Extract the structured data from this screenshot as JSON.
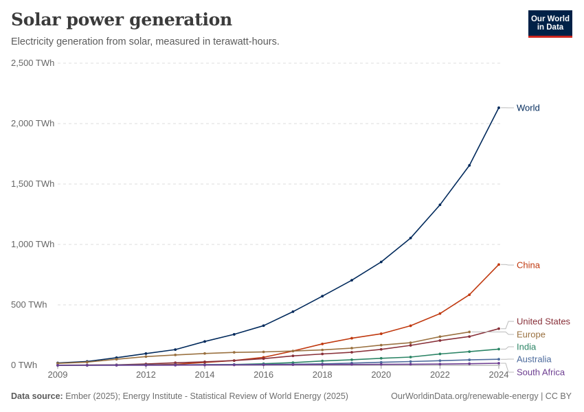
{
  "header": {
    "title": "Solar power generation",
    "subtitle": "Electricity generation from solar, measured in terawatt-hours."
  },
  "logo": {
    "line1": "Our World",
    "line2": "in Data"
  },
  "footer": {
    "source_label": "Data source:",
    "source_text": "Ember (2025); Energy Institute - Statistical Review of World Energy (2025)",
    "url_license": "OurWorldinData.org/renewable-energy | CC BY"
  },
  "chart_data": {
    "type": "line",
    "title": "Solar power generation",
    "subtitle": "Electricity generation from solar, measured in terawatt-hours.",
    "xlim": [
      2009,
      2024
    ],
    "ylim": [
      0,
      2500
    ],
    "y_unit": "TWh",
    "x_ticks": [
      "2009",
      "2012",
      "2014",
      "2016",
      "2018",
      "2020",
      "2022",
      "2024"
    ],
    "y_ticks": [
      "0 TWh",
      "500 TWh",
      "1,000 TWh",
      "1,500 TWh",
      "2,000 TWh",
      "2,500 TWh"
    ],
    "grid": "horizontal",
    "legend": "right-end labels",
    "series": [
      {
        "name": "World",
        "color": "#00295b",
        "x": [
          2009,
          2010,
          2011,
          2012,
          2013,
          2014,
          2015,
          2016,
          2017,
          2018,
          2019,
          2020,
          2021,
          2022,
          2023,
          2024
        ],
        "y": [
          20,
          32,
          63,
          97,
          130,
          197,
          256,
          328,
          444,
          572,
          704,
          855,
          1053,
          1328,
          1654,
          2131
        ]
      },
      {
        "name": "China",
        "color": "#c0390f",
        "x": [
          2009,
          2010,
          2011,
          2012,
          2013,
          2014,
          2015,
          2016,
          2017,
          2018,
          2019,
          2020,
          2021,
          2022,
          2023,
          2024
        ],
        "y": [
          0,
          1,
          3,
          4,
          8,
          24,
          39,
          66,
          118,
          177,
          224,
          261,
          327,
          428,
          584,
          834
        ]
      },
      {
        "name": "United States",
        "color": "#883039",
        "x": [
          2009,
          2010,
          2011,
          2012,
          2013,
          2014,
          2015,
          2016,
          2017,
          2018,
          2019,
          2020,
          2021,
          2022,
          2023,
          2024
        ],
        "y": [
          1,
          2,
          4,
          11,
          21,
          29,
          39,
          55,
          78,
          94,
          108,
          132,
          165,
          205,
          238,
          303
        ]
      },
      {
        "name": "Europe",
        "color": "#9a7140",
        "x": [
          2009,
          2010,
          2011,
          2012,
          2013,
          2014,
          2015,
          2016,
          2017,
          2018,
          2019,
          2020,
          2021,
          2022,
          2023
        ],
        "y": [
          16,
          26,
          50,
          72,
          86,
          98,
          107,
          111,
          118,
          127,
          142,
          167,
          187,
          237,
          276
        ]
      },
      {
        "name": "India",
        "color": "#2b8465",
        "x": [
          2009,
          2010,
          2011,
          2012,
          2013,
          2014,
          2015,
          2016,
          2017,
          2018,
          2019,
          2020,
          2021,
          2022,
          2023,
          2024
        ],
        "y": [
          0,
          0,
          1,
          2,
          3,
          5,
          7,
          13,
          22,
          36,
          46,
          58,
          68,
          94,
          113,
          134
        ]
      },
      {
        "name": "Australia",
        "color": "#4c6a9c",
        "x": [
          2009,
          2010,
          2011,
          2012,
          2013,
          2014,
          2015,
          2016,
          2017,
          2018,
          2019,
          2020,
          2021,
          2022,
          2023,
          2024
        ],
        "y": [
          0,
          1,
          2,
          3,
          4,
          5,
          6,
          7,
          9,
          12,
          18,
          25,
          31,
          38,
          45,
          50
        ]
      },
      {
        "name": "South Africa",
        "color": "#6d3e91",
        "x": [
          2009,
          2010,
          2011,
          2012,
          2013,
          2014,
          2015,
          2016,
          2017,
          2018,
          2019,
          2020,
          2021,
          2022,
          2023,
          2024
        ],
        "y": [
          0,
          0,
          0,
          0,
          1,
          2,
          3,
          4,
          5,
          6,
          7,
          8,
          9,
          10,
          13,
          17
        ]
      }
    ]
  }
}
